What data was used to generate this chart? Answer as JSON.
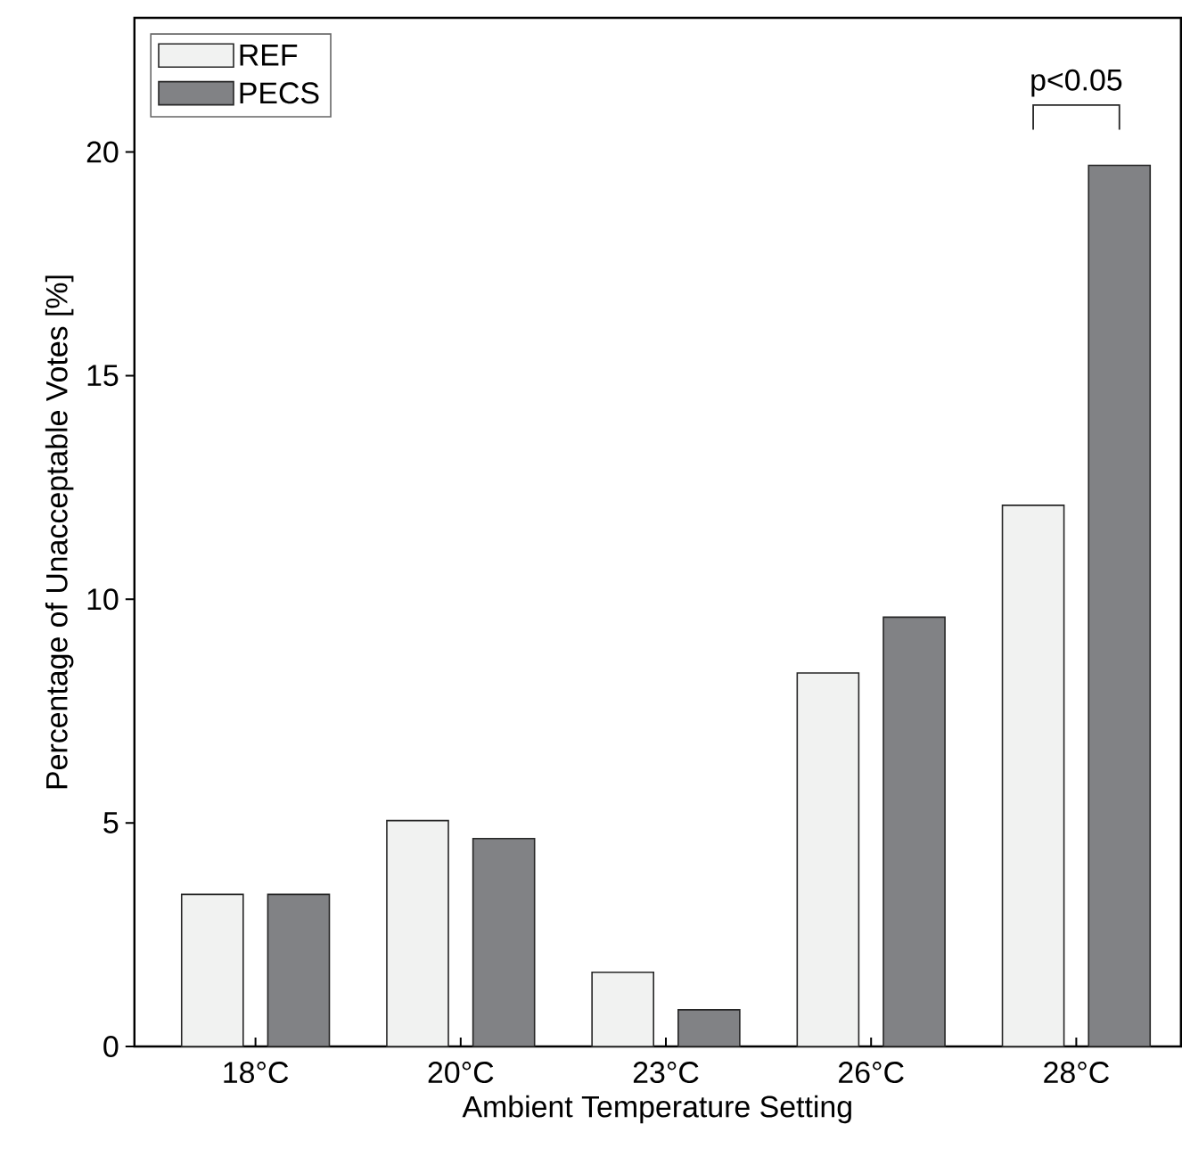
{
  "chart_data": {
    "type": "bar",
    "xlabel": "Ambient Temperature Setting",
    "ylabel": "Percentage of Unacceptable Votes [%]",
    "categories": [
      "18°C",
      "20°C",
      "23°C",
      "26°C",
      "28°C"
    ],
    "series": [
      {
        "name": "REF",
        "color": "#f1f2f1",
        "values": [
          3.4,
          5.05,
          1.66,
          8.35,
          12.1
        ]
      },
      {
        "name": "PECS",
        "color": "#818285",
        "values": [
          3.4,
          4.65,
          0.82,
          9.6,
          19.7
        ]
      }
    ],
    "ylim": [
      0,
      23
    ],
    "yticks": [
      0,
      5,
      10,
      15,
      20
    ],
    "legend": "top left",
    "grid": false,
    "annotations": [
      "p<0.05"
    ]
  }
}
